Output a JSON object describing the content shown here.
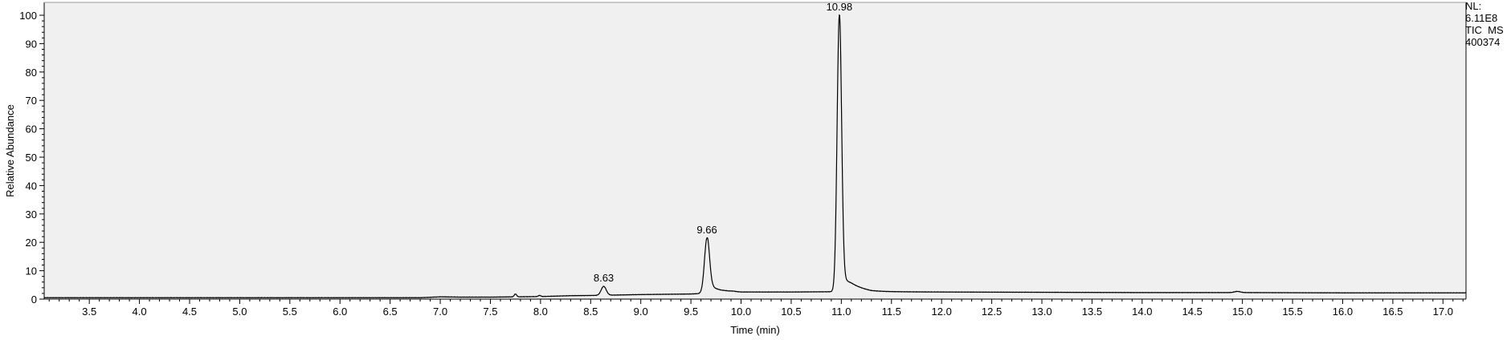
{
  "chart_data": {
    "type": "line",
    "xlabel": "Time (min)",
    "ylabel": "Relative Abundance",
    "xlim": [
      3.05,
      17.23
    ],
    "ylim": [
      0,
      100
    ],
    "x_ticks": [
      "3.5",
      "4.0",
      "4.5",
      "5.0",
      "5.5",
      "6.0",
      "6.5",
      "7.0",
      "7.5",
      "8.0",
      "8.5",
      "9.0",
      "9.5",
      "10.0",
      "10.5",
      "11.0",
      "11.5",
      "12.0",
      "12.5",
      "13.0",
      "13.5",
      "14.0",
      "14.5",
      "15.0",
      "15.5",
      "16.0",
      "16.5",
      "17.0"
    ],
    "y_ticks": [
      "0",
      "10",
      "20",
      "30",
      "40",
      "50",
      "60",
      "70",
      "80",
      "90",
      "100"
    ],
    "grid": false,
    "baseline": [
      [
        3.05,
        0.5
      ],
      [
        6.8,
        0.5
      ],
      [
        7.0,
        0.8
      ],
      [
        7.2,
        0.7
      ],
      [
        7.5,
        0.7
      ],
      [
        8.0,
        0.9
      ],
      [
        8.3,
        1.2
      ],
      [
        8.55,
        1.3
      ],
      [
        9.0,
        1.6
      ],
      [
        9.5,
        1.8
      ],
      [
        9.62,
        2.0
      ],
      [
        9.72,
        3.5
      ],
      [
        9.8,
        3.0
      ],
      [
        10.0,
        2.5
      ],
      [
        10.5,
        2.5
      ],
      [
        10.92,
        2.6
      ],
      [
        11.1,
        3.5
      ],
      [
        11.3,
        2.6
      ],
      [
        12.0,
        2.5
      ],
      [
        13.0,
        2.4
      ],
      [
        14.0,
        2.3
      ],
      [
        15.0,
        2.3
      ],
      [
        16.0,
        2.2
      ],
      [
        17.23,
        2.2
      ]
    ],
    "peaks": [
      {
        "label": "8.63",
        "x": 8.63,
        "y": 4.5,
        "width": 0.025
      },
      {
        "label": "9.66",
        "x": 9.66,
        "y": 21.5,
        "width": 0.025
      },
      {
        "label": "10.98",
        "x": 10.98,
        "y": 100,
        "width": 0.022
      },
      {
        "label": "",
        "x": 7.75,
        "y": 1.8,
        "width": 0.012
      },
      {
        "label": "",
        "x": 7.99,
        "y": 1.3,
        "width": 0.012
      },
      {
        "label": "",
        "x": 9.92,
        "y": 2.8,
        "width": 0.02
      },
      {
        "label": "",
        "x": 14.95,
        "y": 2.7,
        "width": 0.03
      }
    ],
    "tailing": [
      {
        "x": 10.98,
        "amplitude": 6,
        "decay": 0.12
      },
      {
        "x": 9.66,
        "amplitude": 1.5,
        "decay": 0.07
      }
    ]
  },
  "info": {
    "nl_label": "NL:",
    "nl_value": "6.11E8",
    "trace": "TIC  MS",
    "sample": "400374"
  }
}
